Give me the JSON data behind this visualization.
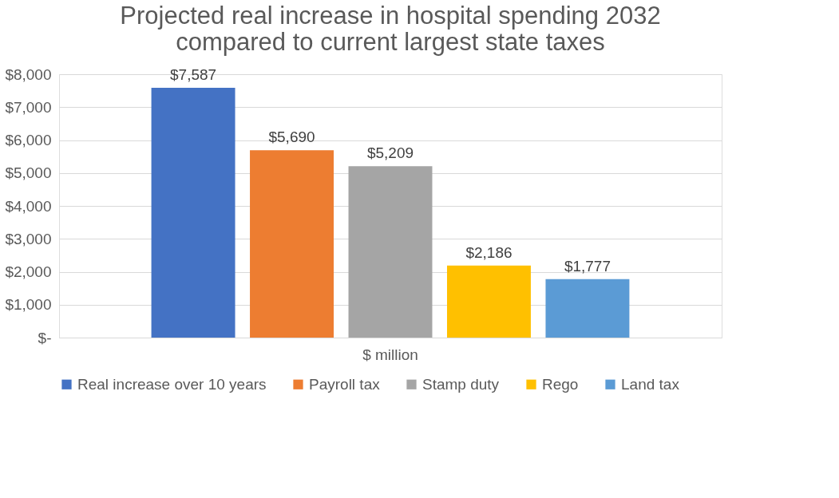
{
  "chart_data": {
    "type": "bar",
    "title": [
      "Projected real increase in hospital spending 2032",
      "compared to current largest state taxes"
    ],
    "categories": [
      "$ million"
    ],
    "series": [
      {
        "name": "Real increase over 10 years",
        "color": "#4472c4",
        "values": [
          7587
        ],
        "value_labels": [
          "$7,587"
        ]
      },
      {
        "name": "Payroll tax",
        "color": "#ed7d31",
        "values": [
          5690
        ],
        "value_labels": [
          "$5,690"
        ]
      },
      {
        "name": "Stamp duty",
        "color": "#a5a5a5",
        "values": [
          5209
        ],
        "value_labels": [
          "$5,209"
        ]
      },
      {
        "name": "Rego",
        "color": "#ffc000",
        "values": [
          2186
        ],
        "value_labels": [
          "$2,186"
        ]
      },
      {
        "name": "Land tax",
        "color": "#5b9bd5",
        "values": [
          1777
        ],
        "value_labels": [
          "$1,777"
        ]
      }
    ],
    "ylim": [
      0,
      8000
    ],
    "yticks": [
      {
        "value": 0,
        "label": "$-"
      },
      {
        "value": 1000,
        "label": "$1,000"
      },
      {
        "value": 2000,
        "label": "$2,000"
      },
      {
        "value": 3000,
        "label": "$3,000"
      },
      {
        "value": 4000,
        "label": "$4,000"
      },
      {
        "value": 5000,
        "label": "$5,000"
      },
      {
        "value": 6000,
        "label": "$6,000"
      },
      {
        "value": 7000,
        "label": "$7,000"
      },
      {
        "value": 8000,
        "label": "$8,000"
      }
    ],
    "grid": "y",
    "legend": "bottom"
  }
}
